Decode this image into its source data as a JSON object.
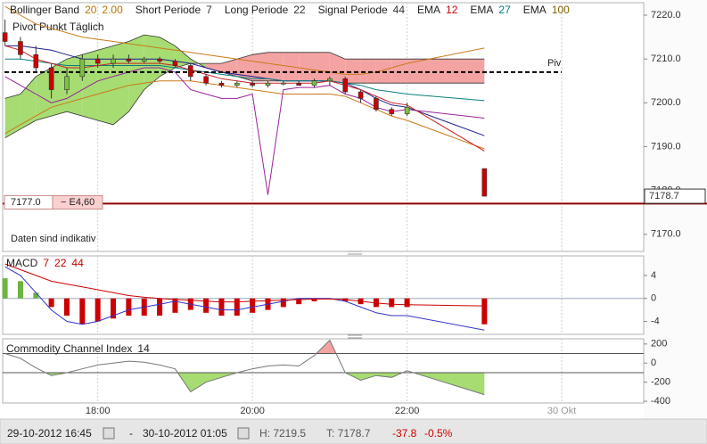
{
  "header": {
    "legend": [
      {
        "label": "Bollinger Band",
        "params": [
          "20",
          "2.00"
        ],
        "color": "#c07000"
      },
      {
        "label": "Short Periode",
        "params": [
          "7"
        ],
        "color": "#333333"
      },
      {
        "label": "Long Periode",
        "params": [
          "22"
        ],
        "color": "#333333"
      },
      {
        "label": "Signal Periode",
        "params": [
          "44"
        ],
        "color": "#333333"
      },
      {
        "label": "EMA",
        "params": [
          "12"
        ],
        "color": "#cc0000"
      },
      {
        "label": "EMA",
        "params": [
          "27"
        ],
        "color": "#008080"
      },
      {
        "label": "EMA",
        "params": [
          "100"
        ],
        "color": "#806000"
      }
    ],
    "pivot_title": "Pivot Punkt Täglich",
    "note": "Daten sind indikativ"
  },
  "chart_data": [
    {
      "type": "candlestick",
      "x": [
        16.8,
        17,
        17.2,
        17.4,
        17.6,
        17.8,
        18,
        18.2,
        18.4,
        18.6,
        18.8,
        19,
        19.2,
        19.4,
        19.6,
        19.8,
        20,
        20.2,
        20.4,
        20.6,
        20.8,
        21,
        21.2,
        21.4,
        21.6,
        21.8,
        22,
        23
      ],
      "xlim": [
        16.77,
        25.06
      ],
      "xticks": [
        {
          "value": 18,
          "label": "18:00"
        },
        {
          "value": 20,
          "label": "20:00"
        },
        {
          "value": 22,
          "label": "22:00"
        },
        {
          "value": 24,
          "label": "30 Okt"
        }
      ],
      "open": [
        7216,
        7214,
        7211,
        7208,
        7203,
        7206,
        7210,
        7209,
        7210,
        7209.5,
        7210,
        7209.5,
        7208.5,
        7206,
        7204.5,
        7204,
        7204.5,
        7204,
        7204.5,
        7204.5,
        7204,
        7205,
        7205.5,
        7202.5,
        7201,
        7198.5,
        7197.5,
        7185
      ],
      "high": [
        7219,
        7215,
        7213,
        7209,
        7208,
        7211,
        7211,
        7211,
        7211,
        7210.5,
        7210.5,
        7210,
        7209,
        7206.5,
        7205,
        7205,
        7205,
        7205,
        7205,
        7205,
        7205.5,
        7206,
        7206,
        7203,
        7201.5,
        7199,
        7200,
        7185
      ],
      "low": [
        7213,
        7210,
        7207,
        7201,
        7202,
        7205,
        7208,
        7208,
        7209,
        7209,
        7209,
        7208,
        7205,
        7204,
        7203.5,
        7203.5,
        7203.5,
        7203.5,
        7204,
        7204,
        7203.5,
        7204,
        7202,
        7200,
        7198,
        7197,
        7197,
        7178.7
      ],
      "close": [
        7214,
        7211,
        7208,
        7203,
        7206,
        7210,
        7209,
        7210,
        7209.5,
        7210,
        7209.5,
        7208.5,
        7206,
        7204.5,
        7204,
        7204.5,
        7204,
        7204.5,
        7204.5,
        7204,
        7205,
        7205.5,
        7202.5,
        7201,
        7198.5,
        7197.5,
        7199,
        7178.7
      ],
      "up_color": "#7dc142",
      "down_color": "#cc0000",
      "ylim": [
        7166.1,
        7222.85
      ],
      "yticks": [
        {
          "value": 7170,
          "label": "7170.0"
        },
        {
          "value": 7180,
          "label": "7180.0"
        },
        {
          "value": 7190,
          "label": "7190.0"
        },
        {
          "value": 7200,
          "label": "7200.0"
        },
        {
          "value": 7210,
          "label": "7210.0"
        },
        {
          "value": 7220,
          "label": "7220.0"
        }
      ],
      "cloud": {
        "span_a": [
          7201,
          7202,
          7206,
          7208,
          7210,
          7211,
          7212,
          7213,
          7214,
          7215.5,
          7215,
          7213,
          7210,
          7208,
          7207,
          7206,
          7205,
          7205,
          7205,
          7205,
          7205,
          7205,
          7204.5,
          7204.5,
          7204.5,
          7204.5,
          7204.5,
          7204.5
        ],
        "span_b": [
          7192,
          7194,
          7196,
          7197,
          7198,
          7197,
          7196,
          7195,
          7198,
          7203,
          7206,
          7208,
          7209,
          7209,
          7209,
          7210,
          7211,
          7211.5,
          7211.5,
          7211.5,
          7211.5,
          7211.5,
          7210,
          7210,
          7210,
          7210,
          7210,
          7210
        ],
        "up_color": "#a6dc72",
        "down_color": "#f4a3a3",
        "line_color": "#333333"
      },
      "series": [
        {
          "color": "#c87a1a",
          "values": [
            7222,
            7220,
            7218,
            7217,
            7216,
            7215,
            7214.5,
            7214,
            7213.5,
            7213,
            7212.5,
            7212,
            7211.5,
            7211,
            7210.5,
            7210,
            7209.5,
            7209,
            7208.5,
            7208,
            7207.5,
            7207,
            7206.5,
            7206.5,
            7207,
            7208,
            7209,
            7212.5
          ]
        },
        {
          "color": "#c87a1a",
          "values": [
            7193,
            7195,
            7197,
            7199,
            7200,
            7201,
            7202,
            7203,
            7204,
            7204.5,
            7205,
            7205,
            7205,
            7204.5,
            7204,
            7203.5,
            7203,
            7202.5,
            7202,
            7202,
            7202,
            7202,
            7201.5,
            7200,
            7198.5,
            7197,
            7196,
            7189.5
          ]
        },
        {
          "color": "#992299",
          "values": [
            7206,
            7204,
            7202,
            7200,
            7201,
            7203,
            7205,
            7206,
            7207,
            7208,
            7208,
            7207,
            7203,
            7202,
            7201,
            7201,
            7202,
            7179,
            7203,
            7203.5,
            7203.5,
            7204,
            7202,
            7201,
            7199,
            7198,
            7198.5,
            7196.5
          ]
        },
        {
          "color": "#1f1f8f",
          "values": [
            7213,
            7213,
            7212.5,
            7212,
            7211,
            7210,
            7210,
            7210,
            7210,
            7210,
            7210,
            7209.5,
            7209,
            7208,
            7207,
            7206.5,
            7206,
            7205.5,
            7205,
            7205,
            7205,
            7205,
            7204.5,
            7203,
            7201,
            7199.5,
            7199,
            7192.5
          ]
        },
        {
          "color": "#0a7f7f",
          "values": [
            7210,
            7210,
            7209.5,
            7209,
            7208.5,
            7208.5,
            7208.5,
            7208.5,
            7208.5,
            7208.5,
            7208.5,
            7208,
            7207.5,
            7207,
            7206.5,
            7206,
            7205.5,
            7205.5,
            7205,
            7205,
            7205,
            7205,
            7204.5,
            7204,
            7203,
            7202.5,
            7202,
            7200.5
          ]
        },
        {
          "color": "#cc2222",
          "values": [
            7213,
            7212,
            7210,
            7209,
            7208,
            7208,
            7208.5,
            7209,
            7209,
            7209,
            7209,
            7208.5,
            7207.5,
            7206.5,
            7205.5,
            7205,
            7204.5,
            7204.5,
            7204.5,
            7204.5,
            7204.5,
            7205,
            7204,
            7203,
            7201.5,
            7200,
            7199.5,
            7189
          ]
        }
      ],
      "pivot": {
        "value": 7207,
        "label": "Piv"
      },
      "order": {
        "value": 7177,
        "label": "7177.0",
        "change": "− E4,60",
        "color": "#8b0000"
      }
    },
    {
      "type": "macd",
      "title": "MACD",
      "params": [
        "7",
        "22",
        "44"
      ],
      "histogram": [
        3.5,
        3,
        1,
        -1.5,
        -3,
        -4.5,
        -4,
        -3.5,
        -3,
        -3,
        -3,
        -2.5,
        -2,
        -2.5,
        -3,
        -3,
        -2.5,
        -2,
        -1.5,
        -1,
        -0.5,
        0,
        -0.5,
        -1,
        -1.5,
        -1.5,
        -1.5,
        -4.5
      ],
      "macd": [
        5.5,
        4,
        1,
        -2,
        -4,
        -4.5,
        -4,
        -3,
        -2,
        -1.5,
        -1,
        -0.5,
        -1,
        -1.5,
        -2,
        -2,
        -1.5,
        -1,
        -0.5,
        0,
        0,
        0,
        -0.5,
        -1.5,
        -2.5,
        -3,
        -3,
        -5.5
      ],
      "signal": [
        6,
        5,
        4,
        3,
        2.5,
        2,
        1.5,
        1,
        0.5,
        0.2,
        0,
        -0.2,
        -0.3,
        -0.5,
        -0.6,
        -0.6,
        -0.5,
        -0.4,
        -0.3,
        -0.2,
        -0.1,
        -0.1,
        -0.2,
        -0.5,
        -0.8,
        -1,
        -1.1,
        -1.3
      ],
      "macd_color": "#3333cc",
      "signal_color": "#cc0000",
      "pos_color": "#6db33f",
      "neg_color": "#cc0000",
      "ylim": [
        -6.25,
        7.4
      ],
      "yticks": [
        4,
        0,
        -4
      ]
    },
    {
      "type": "cci",
      "title": "Commodity Channel Index",
      "params": [
        "14"
      ],
      "values": [
        100,
        50,
        -50,
        -130,
        -100,
        -60,
        -20,
        0,
        20,
        10,
        -20,
        -60,
        -300,
        -200,
        -150,
        -100,
        -60,
        -30,
        -20,
        -30,
        80,
        240,
        -100,
        -180,
        -130,
        -150,
        -80,
        -330
      ],
      "levels": [
        100,
        -100
      ],
      "color": "#777777",
      "above_fill": "#f4a3a3",
      "below_fill": "#a6dc72",
      "ylim": [
        -418,
        254.5
      ],
      "yticks": [
        200,
        0,
        -200,
        -400
      ]
    }
  ],
  "footer": {
    "from": "29-10-2012 16:45",
    "separator": "-",
    "to": "30-10-2012 01:05",
    "high": "H: 7219.5",
    "low": "T: 7178.7",
    "change": "-37.8",
    "change_pct": "-0.5%"
  }
}
